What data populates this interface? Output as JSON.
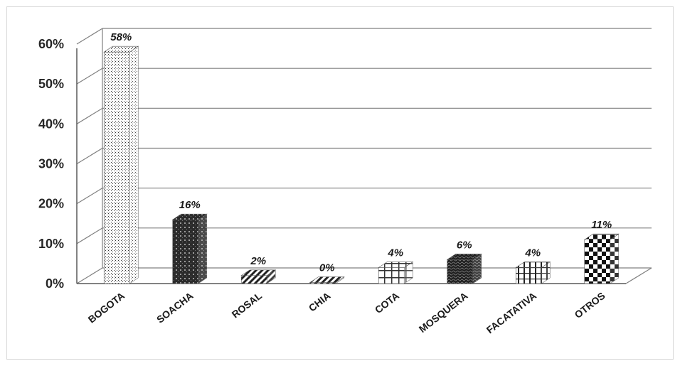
{
  "chart_data": {
    "type": "bar",
    "title": "",
    "xlabel": "",
    "ylabel": "",
    "categories": [
      "BOGOTA",
      "SOACHA",
      "ROSAL",
      "CHIA",
      "COTA",
      "MOSQUERA",
      "FACATATIVA",
      "OTROS"
    ],
    "values": [
      58,
      16,
      2,
      0,
      4,
      6,
      4,
      11
    ],
    "data_labels": [
      "58%",
      "16%",
      "2%",
      "0%",
      "4%",
      "6%",
      "4%",
      "11%"
    ],
    "yticks": [
      "0%",
      "10%",
      "20%",
      "30%",
      "40%",
      "50%",
      "60%"
    ],
    "ylim": [
      0,
      60
    ],
    "grid": true,
    "legend": "none",
    "style": "3d-columns",
    "patterns": [
      "fine-dots",
      "brick-dark",
      "diagonal-stripes",
      "diagonal-stripes",
      "plaid-light",
      "dark-wave",
      "vertical-grid",
      "checkerboard"
    ],
    "colors": {
      "grid": "#808080",
      "axis": "#595959",
      "text": "#262626"
    }
  }
}
